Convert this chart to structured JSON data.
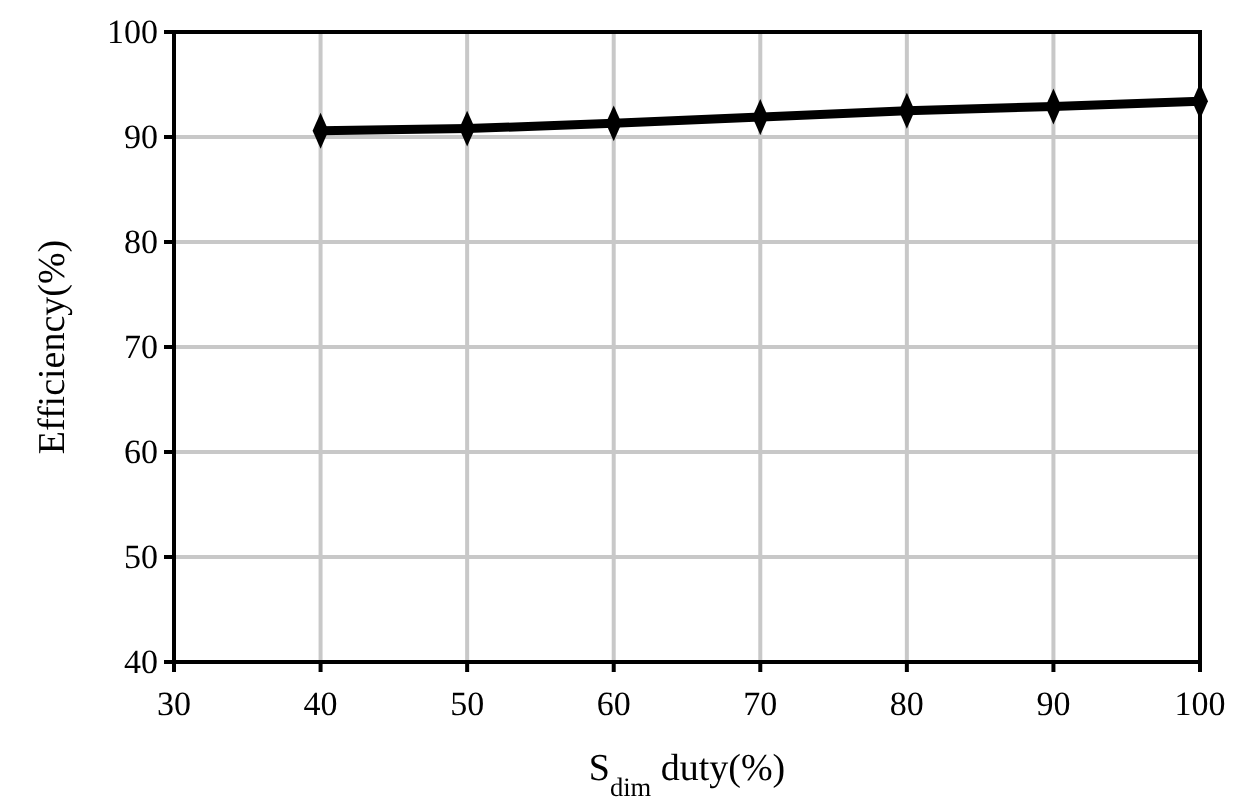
{
  "chart_data": {
    "type": "line",
    "xlabel": "S$_{dim}$ duty(%)",
    "ylabel": "Efficiency(%)",
    "x": [
      40,
      50,
      60,
      70,
      80,
      90,
      100
    ],
    "series": [
      {
        "color": "#000000",
        "values": [
          90.6,
          90.8,
          91.3,
          91.9,
          92.5,
          92.9,
          93.4
        ]
      }
    ],
    "xlim": [
      30,
      100
    ],
    "xticks": [
      30,
      40,
      50,
      60,
      70,
      80,
      90,
      100
    ],
    "ylim": [
      40,
      100
    ],
    "yticks": [
      40,
      50,
      60,
      70,
      80,
      90,
      100
    ],
    "grid": true,
    "marker": "diamond",
    "line_style": "solid"
  }
}
